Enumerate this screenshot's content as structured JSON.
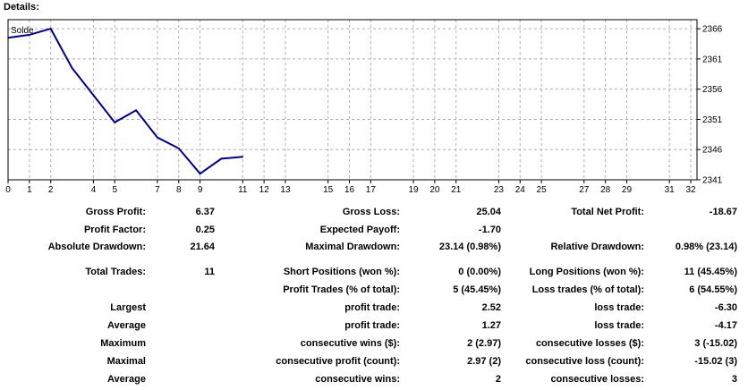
{
  "header": {
    "title": "Details:"
  },
  "chart_data": {
    "type": "line",
    "legend": "Solde",
    "legend_placement": "top-left",
    "x": [
      0,
      1,
      2,
      3,
      4,
      5,
      6,
      7,
      8,
      9,
      10,
      11
    ],
    "y": [
      2364.5,
      2365,
      2366,
      2359.5,
      2355,
      2350.5,
      2352.5,
      2348,
      2346.2,
      2342,
      2344.5,
      2344.8
    ],
    "xlim": [
      0,
      32
    ],
    "ylim": [
      2341,
      2367.5
    ],
    "x_ticks": [
      0,
      1,
      2,
      4,
      5,
      7,
      8,
      9,
      11,
      12,
      13,
      15,
      16,
      17,
      19,
      20,
      21,
      23,
      24,
      25,
      27,
      28,
      29,
      31,
      32
    ],
    "y_ticks": [
      2366,
      2361,
      2356,
      2351,
      2346,
      2341
    ],
    "grid": true,
    "line_color": "#000080"
  },
  "stats": {
    "gross_profit_label": "Gross Profit:",
    "gross_profit": "6.37",
    "gross_loss_label": "Gross Loss:",
    "gross_loss": "25.04",
    "total_net_profit_label": "Total Net Profit:",
    "total_net_profit": "-18.67",
    "profit_factor_label": "Profit Factor:",
    "profit_factor": "0.25",
    "expected_payoff_label": "Expected Payoff:",
    "expected_payoff": "-1.70",
    "absolute_drawdown_label": "Absolute Drawdown:",
    "absolute_drawdown": "21.64",
    "maximal_drawdown_label": "Maximal Drawdown:",
    "maximal_drawdown": "23.14 (0.98%)",
    "relative_drawdown_label": "Relative Drawdown:",
    "relative_drawdown": "0.98% (23.14)",
    "total_trades_label": "Total Trades:",
    "total_trades": "11",
    "short_positions_label": "Short Positions (won %):",
    "short_positions": "0 (0.00%)",
    "long_positions_label": "Long Positions (won %):",
    "long_positions": "11 (45.45%)",
    "profit_trades_label": "Profit Trades (% of total):",
    "profit_trades": "5 (45.45%)",
    "loss_trades_label": "Loss trades (% of total):",
    "loss_trades": "6 (54.55%)",
    "largest_label": "Largest",
    "largest_profit_label": "profit trade:",
    "largest_profit": "2.52",
    "largest_loss_label": "loss trade:",
    "largest_loss": "-6.30",
    "average_label": "Average",
    "average_profit_label": "profit trade:",
    "average_profit": "1.27",
    "average_loss_label": "loss trade:",
    "average_loss": "-4.17",
    "maximum_label": "Maximum",
    "max_consec_wins_label": "consecutive wins ($):",
    "max_consec_wins": "2 (2.97)",
    "max_consec_losses_label": "consecutive losses ($):",
    "max_consec_losses": "3 (-15.02)",
    "maximal_label": "Maximal",
    "maximal_consec_profit_label": "consecutive profit (count):",
    "maximal_consec_profit": "2.97 (2)",
    "maximal_consec_loss_label": "consecutive loss (count):",
    "maximal_consec_loss": "-15.02 (3)",
    "average2_label": "Average",
    "avg_consec_wins_label": "consecutive wins:",
    "avg_consec_wins": "2",
    "avg_consec_losses_label": "consecutive losses:",
    "avg_consec_losses": "3"
  }
}
